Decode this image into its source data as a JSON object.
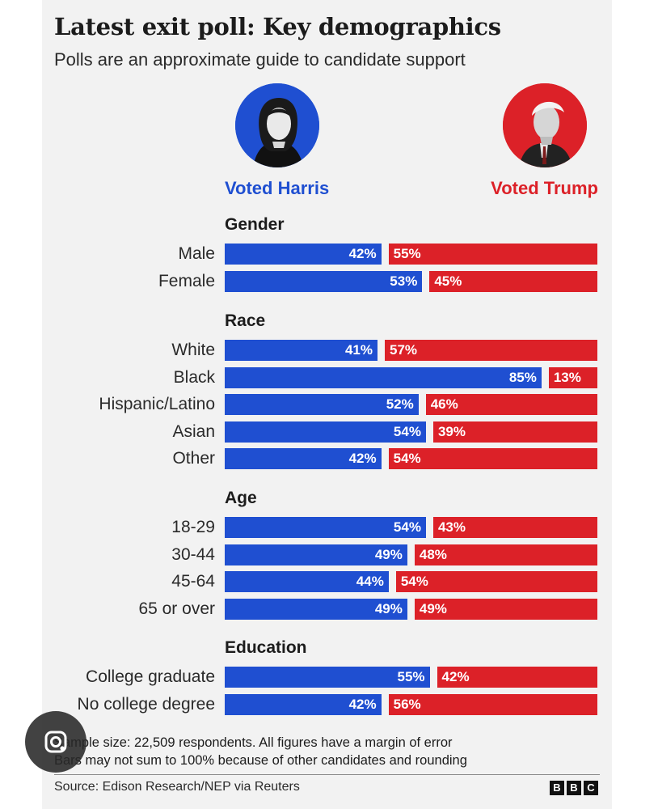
{
  "title": "Latest exit poll: Key demographics",
  "subtitle": "Polls are an approximate guide to candidate support",
  "candidates": {
    "harris": {
      "label": "Voted Harris",
      "color": "#1f4fd1"
    },
    "trump": {
      "label": "Voted Trump",
      "color": "#dc2128"
    }
  },
  "chart_data": {
    "type": "bar",
    "orientation": "horizontal-diverging",
    "series": [
      {
        "name": "Voted Harris",
        "color": "#1f4fd1"
      },
      {
        "name": "Voted Trump",
        "color": "#dc2128"
      }
    ],
    "groups": [
      {
        "title": "Gender",
        "rows": [
          {
            "label": "Male",
            "harris": 42,
            "trump": 55
          },
          {
            "label": "Female",
            "harris": 53,
            "trump": 45
          }
        ]
      },
      {
        "title": "Race",
        "rows": [
          {
            "label": "White",
            "harris": 41,
            "trump": 57
          },
          {
            "label": "Black",
            "harris": 85,
            "trump": 13
          },
          {
            "label": "Hispanic/Latino",
            "harris": 52,
            "trump": 46
          },
          {
            "label": "Asian",
            "harris": 54,
            "trump": 39
          },
          {
            "label": "Other",
            "harris": 42,
            "trump": 54
          }
        ]
      },
      {
        "title": "Age",
        "rows": [
          {
            "label": "18-29",
            "harris": 54,
            "trump": 43
          },
          {
            "label": "30-44",
            "harris": 49,
            "trump": 48
          },
          {
            "label": "45-64",
            "harris": 44,
            "trump": 54
          },
          {
            "label": "65 or over",
            "harris": 49,
            "trump": 49
          }
        ]
      },
      {
        "title": "Education",
        "rows": [
          {
            "label": "College graduate",
            "harris": 55,
            "trump": 42
          },
          {
            "label": "No college degree",
            "harris": 42,
            "trump": 56
          }
        ]
      }
    ],
    "value_suffix": "%"
  },
  "footnotes": {
    "line1": "Sample size: 22,509 respondents. All figures have a margin of error",
    "line2": "Bars may not sum to 100% because of other candidates and rounding"
  },
  "source": "Source: Edison Research/NEP via Reuters",
  "logo": [
    "B",
    "B",
    "C"
  ]
}
